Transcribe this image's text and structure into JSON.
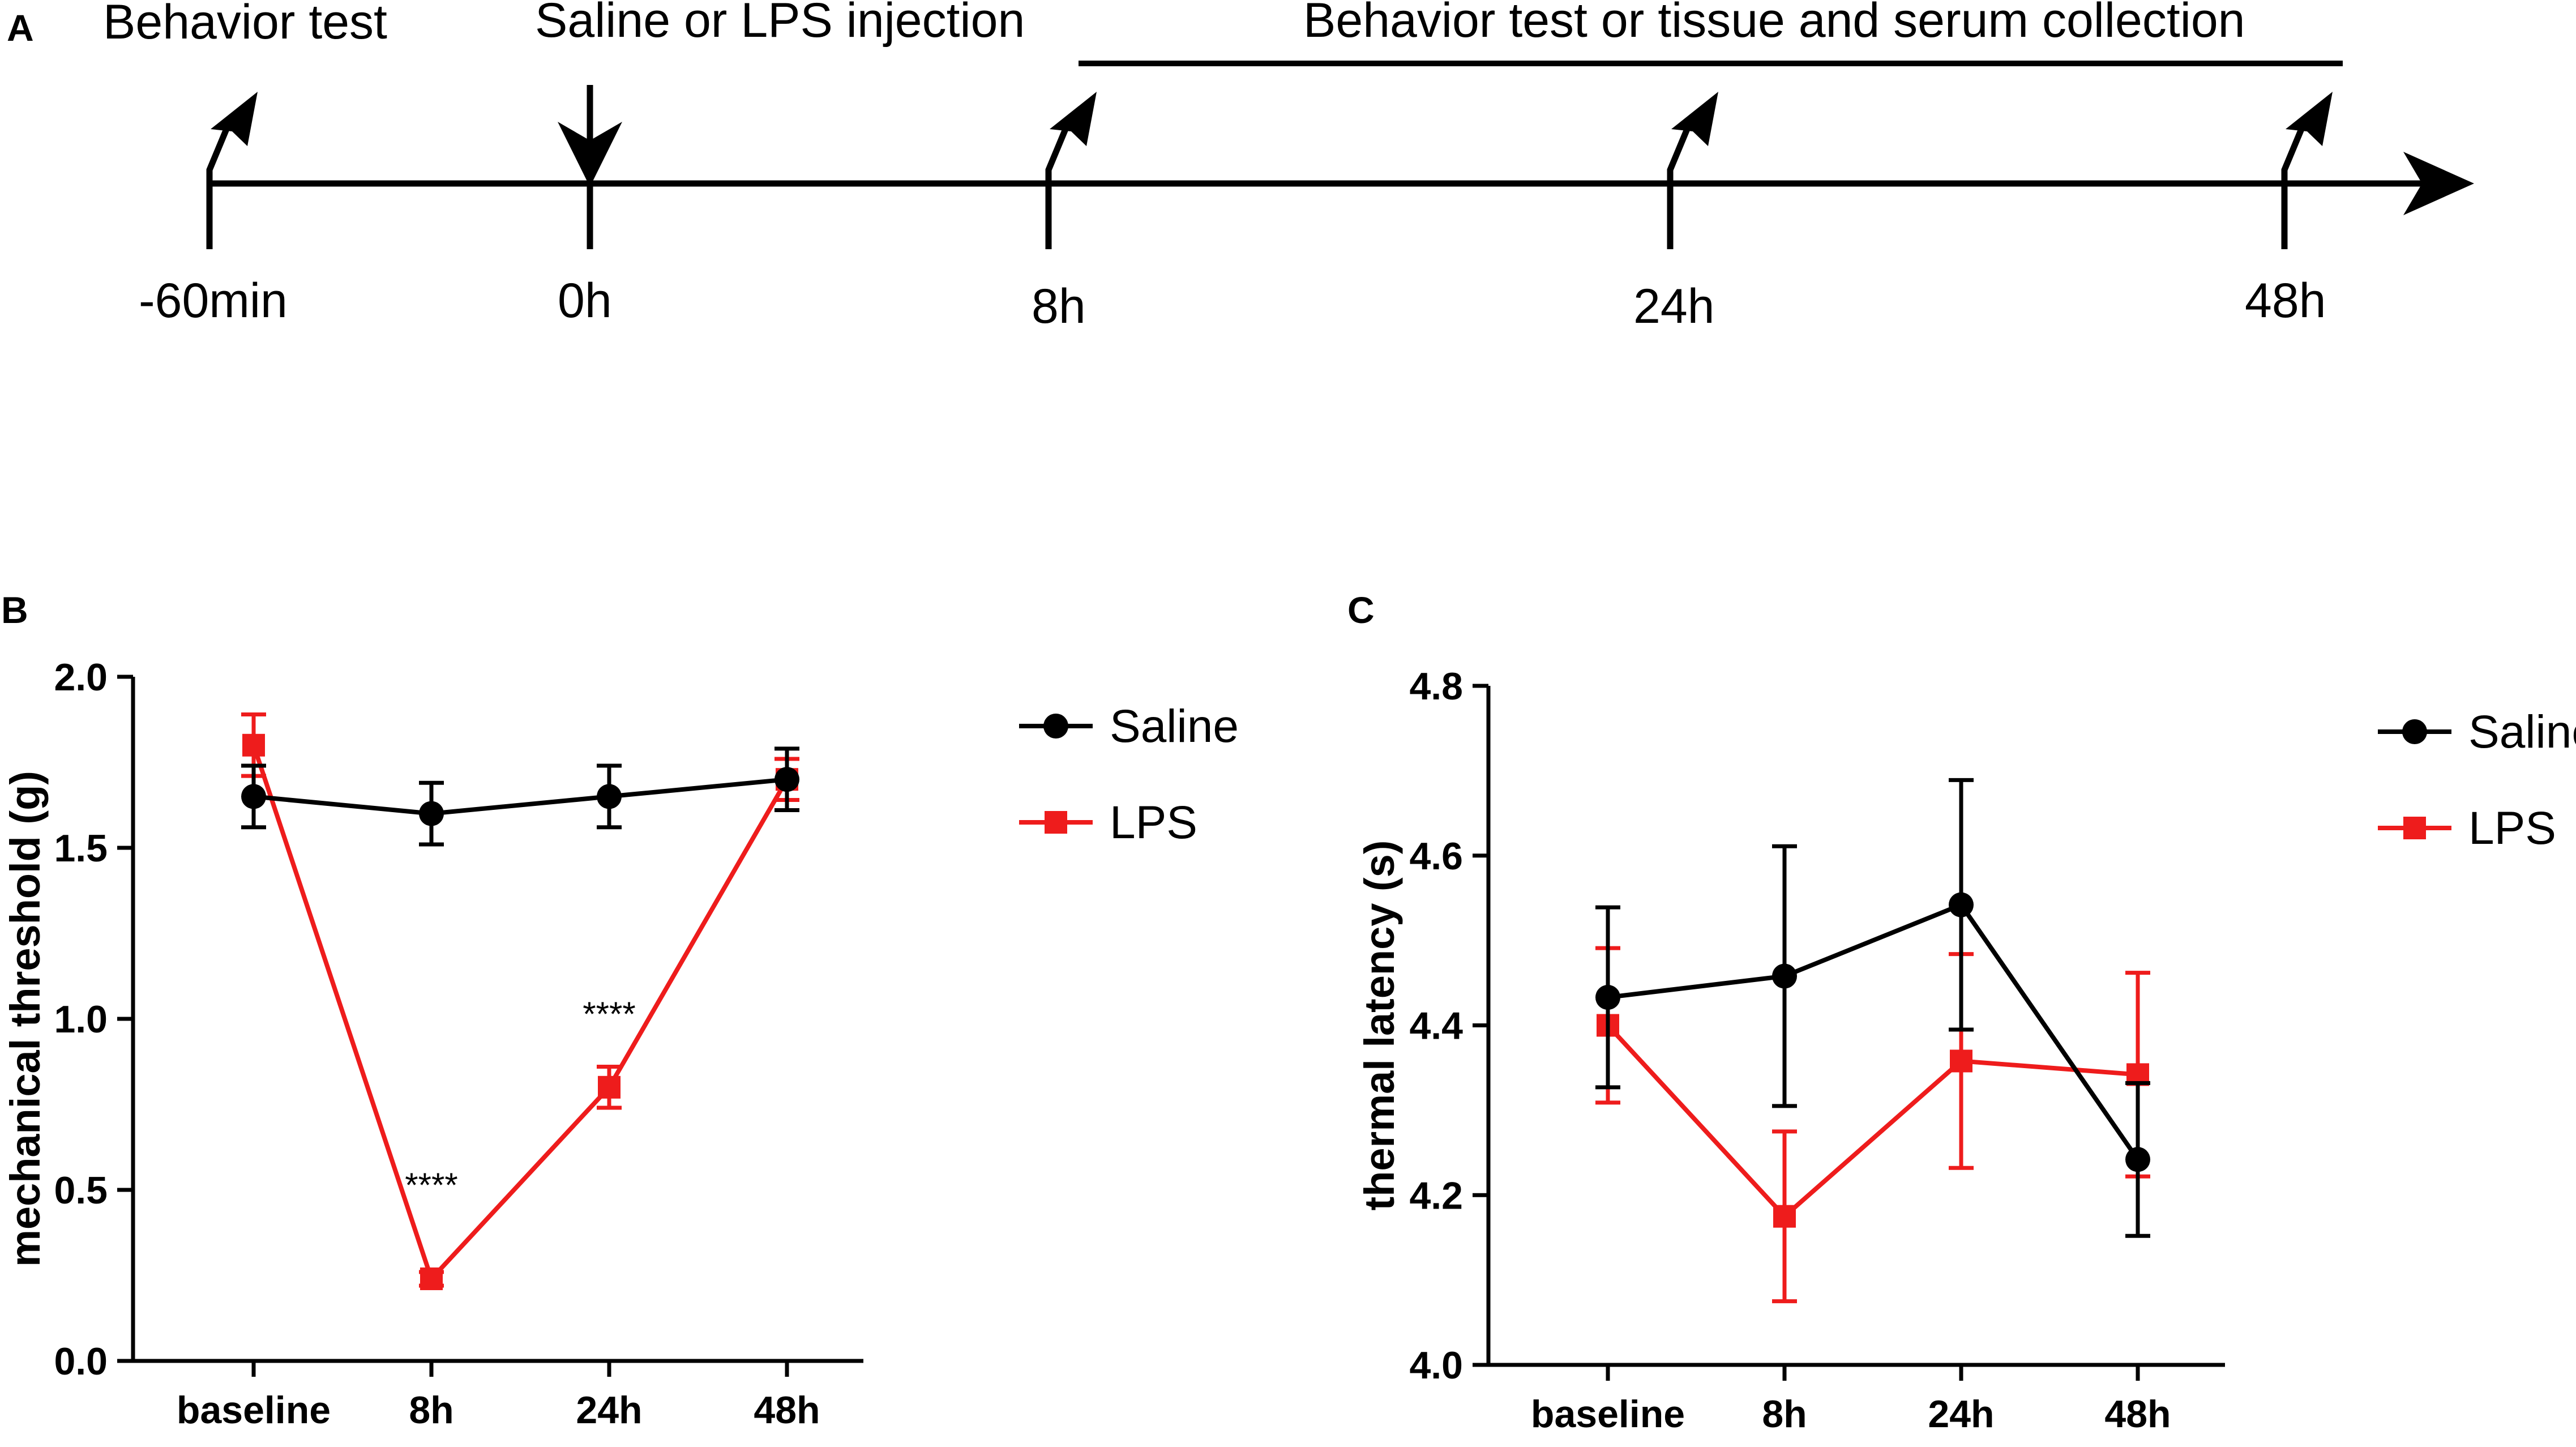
{
  "panels": {
    "a": {
      "label": "A",
      "steps": [
        {
          "time": "-60min",
          "event": "Behavior test",
          "marker": "up-right-arrow"
        },
        {
          "time": "0h",
          "event": "Saline or LPS injection",
          "marker": "down-arrow"
        },
        {
          "time": "8h",
          "event": "",
          "marker": "up-right-arrow"
        },
        {
          "time": "24h",
          "event": "",
          "marker": "up-right-arrow"
        },
        {
          "time": "48h",
          "event": "",
          "marker": "up-right-arrow"
        }
      ],
      "range_label": "Behavior test or tissue and serum collection"
    },
    "b": {
      "label": "B"
    },
    "c": {
      "label": "C"
    }
  },
  "colors": {
    "saline": "#000000",
    "lps": "#ee1c1c"
  },
  "chart_data": [
    {
      "id": "b",
      "type": "line",
      "ylabel": "mechanical threshold (g)",
      "xlabel": "",
      "categories": [
        "baseline",
        "8h",
        "24h",
        "48h"
      ],
      "ylim": [
        0,
        2.0
      ],
      "yticks": [
        0.0,
        0.5,
        1.0,
        1.5,
        2.0
      ],
      "ytick_labels": [
        "0.0",
        "0.5",
        "1.0",
        "1.5",
        "2.0"
      ],
      "legend_position": "right",
      "series": [
        {
          "name": "Saline",
          "marker": "circle",
          "values": [
            1.65,
            1.6,
            1.65,
            1.7
          ],
          "errors": [
            0.09,
            0.09,
            0.09,
            0.09
          ]
        },
        {
          "name": "LPS",
          "marker": "square",
          "values": [
            1.8,
            0.24,
            0.8,
            1.7
          ],
          "errors": [
            0.09,
            0.02,
            0.06,
            0.06
          ]
        }
      ],
      "annotations": [
        {
          "text": "****",
          "category": "8h",
          "y": 0.48
        },
        {
          "text": "****",
          "category": "24h",
          "y": 0.98
        }
      ]
    },
    {
      "id": "c",
      "type": "line",
      "ylabel": "thermal latency (s)",
      "xlabel": "",
      "categories": [
        "baseline",
        "8h",
        "24h",
        "48h"
      ],
      "ylim": [
        4.0,
        4.8
      ],
      "yticks": [
        4.0,
        4.2,
        4.4,
        4.6,
        4.8
      ],
      "ytick_labels": [
        "4.0",
        "4.2",
        "4.4",
        "4.6",
        "4.8"
      ],
      "legend_position": "right",
      "series": [
        {
          "name": "Saline",
          "marker": "circle",
          "values": [
            4.433,
            4.458,
            4.542,
            4.242
          ],
          "errors": [
            0.106,
            0.153,
            0.147,
            0.09
          ]
        },
        {
          "name": "LPS",
          "marker": "square",
          "values": [
            4.4,
            4.175,
            4.358,
            4.342
          ],
          "errors": [
            0.091,
            0.1,
            0.126,
            0.12
          ]
        }
      ],
      "annotations": []
    }
  ]
}
